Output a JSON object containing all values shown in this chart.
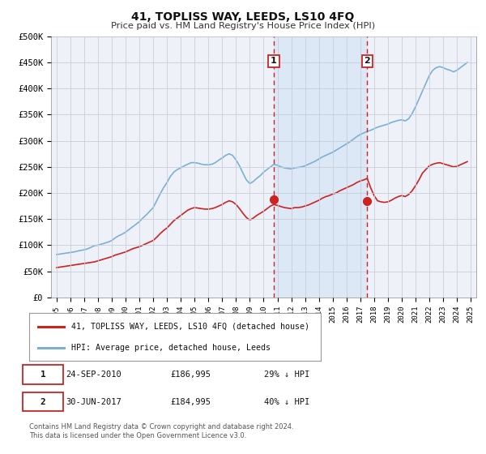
{
  "title": "41, TOPLISS WAY, LEEDS, LS10 4FQ",
  "subtitle": "Price paid vs. HM Land Registry's House Price Index (HPI)",
  "ylim": [
    0,
    500000
  ],
  "yticks": [
    0,
    50000,
    100000,
    150000,
    200000,
    250000,
    300000,
    350000,
    400000,
    450000,
    500000
  ],
  "ytick_labels": [
    "£0",
    "£50K",
    "£100K",
    "£150K",
    "£200K",
    "£250K",
    "£300K",
    "£350K",
    "£400K",
    "£450K",
    "£500K"
  ],
  "xlim_start": 1994.6,
  "xlim_end": 2025.4,
  "background_color": "#ffffff",
  "plot_bg_color": "#eef2f8",
  "grid_color": "#c8cdd8",
  "sale1_date": 2010.73,
  "sale1_price": 186995,
  "sale1_date_str": "24-SEP-2010",
  "sale1_hpi_diff": "29% ↓ HPI",
  "sale2_date": 2017.5,
  "sale2_price": 184995,
  "sale2_date_str": "30-JUN-2017",
  "sale2_hpi_diff": "40% ↓ HPI",
  "hpi_color": "#7ab0d4",
  "price_color": "#cc2222",
  "marker_color": "#cc2222",
  "shade_color": "#dce8f5",
  "legend_label_price": "41, TOPLISS WAY, LEEDS, LS10 4FQ (detached house)",
  "legend_label_hpi": "HPI: Average price, detached house, Leeds",
  "footnote_line1": "Contains HM Land Registry data © Crown copyright and database right 2024.",
  "footnote_line2": "This data is licensed under the Open Government Licence v3.0.",
  "hpi_data_x": [
    1995.0,
    1995.25,
    1995.5,
    1995.75,
    1996.0,
    1996.25,
    1996.5,
    1996.75,
    1997.0,
    1997.25,
    1997.5,
    1997.75,
    1998.0,
    1998.25,
    1998.5,
    1998.75,
    1999.0,
    1999.25,
    1999.5,
    1999.75,
    2000.0,
    2000.25,
    2000.5,
    2000.75,
    2001.0,
    2001.25,
    2001.5,
    2001.75,
    2002.0,
    2002.25,
    2002.5,
    2002.75,
    2003.0,
    2003.25,
    2003.5,
    2003.75,
    2004.0,
    2004.25,
    2004.5,
    2004.75,
    2005.0,
    2005.25,
    2005.5,
    2005.75,
    2006.0,
    2006.25,
    2006.5,
    2006.75,
    2007.0,
    2007.25,
    2007.5,
    2007.75,
    2008.0,
    2008.25,
    2008.5,
    2008.75,
    2009.0,
    2009.25,
    2009.5,
    2009.75,
    2010.0,
    2010.25,
    2010.5,
    2010.75,
    2011.0,
    2011.25,
    2011.5,
    2011.75,
    2012.0,
    2012.25,
    2012.5,
    2012.75,
    2013.0,
    2013.25,
    2013.5,
    2013.75,
    2014.0,
    2014.25,
    2014.5,
    2014.75,
    2015.0,
    2015.25,
    2015.5,
    2015.75,
    2016.0,
    2016.25,
    2016.5,
    2016.75,
    2017.0,
    2017.25,
    2017.5,
    2017.75,
    2018.0,
    2018.25,
    2018.5,
    2018.75,
    2019.0,
    2019.25,
    2019.5,
    2019.75,
    2020.0,
    2020.25,
    2020.5,
    2020.75,
    2021.0,
    2021.25,
    2021.5,
    2021.75,
    2022.0,
    2022.25,
    2022.5,
    2022.75,
    2023.0,
    2023.25,
    2023.5,
    2023.75,
    2024.0,
    2024.25,
    2024.5,
    2024.75
  ],
  "hpi_data_y": [
    82000,
    83000,
    84000,
    85000,
    86000,
    87000,
    88500,
    90000,
    91000,
    93000,
    96000,
    99000,
    100000,
    102000,
    104000,
    106000,
    109000,
    114000,
    118000,
    121000,
    125000,
    130000,
    135000,
    140000,
    145000,
    152000,
    158000,
    165000,
    172000,
    185000,
    198000,
    210000,
    220000,
    232000,
    240000,
    245000,
    248000,
    252000,
    255000,
    258000,
    258000,
    257000,
    255000,
    254000,
    254000,
    255000,
    258000,
    263000,
    267000,
    272000,
    275000,
    272000,
    263000,
    252000,
    238000,
    225000,
    218000,
    222000,
    228000,
    233000,
    240000,
    245000,
    250000,
    255000,
    253000,
    250000,
    248000,
    247000,
    246000,
    248000,
    249000,
    250000,
    252000,
    255000,
    258000,
    261000,
    265000,
    269000,
    272000,
    275000,
    278000,
    282000,
    286000,
    290000,
    294000,
    298000,
    303000,
    308000,
    312000,
    315000,
    318000,
    320000,
    323000,
    326000,
    328000,
    330000,
    332000,
    335000,
    337000,
    339000,
    340000,
    338000,
    342000,
    352000,
    365000,
    380000,
    395000,
    410000,
    425000,
    435000,
    440000,
    442000,
    440000,
    437000,
    435000,
    432000,
    435000,
    440000,
    445000,
    450000
  ],
  "price_data_x": [
    1995.0,
    1995.25,
    1995.5,
    1995.75,
    1996.0,
    1996.25,
    1996.5,
    1996.75,
    1997.0,
    1997.25,
    1997.5,
    1997.75,
    1998.0,
    1998.25,
    1998.5,
    1998.75,
    1999.0,
    1999.25,
    1999.5,
    1999.75,
    2000.0,
    2000.25,
    2000.5,
    2000.75,
    2001.0,
    2001.25,
    2001.5,
    2001.75,
    2002.0,
    2002.25,
    2002.5,
    2002.75,
    2003.0,
    2003.25,
    2003.5,
    2003.75,
    2004.0,
    2004.25,
    2004.5,
    2004.75,
    2005.0,
    2005.25,
    2005.5,
    2005.75,
    2006.0,
    2006.25,
    2006.5,
    2006.75,
    2007.0,
    2007.25,
    2007.5,
    2007.75,
    2008.0,
    2008.25,
    2008.5,
    2008.75,
    2009.0,
    2009.25,
    2009.5,
    2009.75,
    2010.0,
    2010.25,
    2010.5,
    2010.75,
    2011.0,
    2011.25,
    2011.5,
    2011.75,
    2012.0,
    2012.25,
    2012.5,
    2012.75,
    2013.0,
    2013.25,
    2013.5,
    2013.75,
    2014.0,
    2014.25,
    2014.5,
    2014.75,
    2015.0,
    2015.25,
    2015.5,
    2015.75,
    2016.0,
    2016.25,
    2016.5,
    2016.75,
    2017.0,
    2017.25,
    2017.5,
    2017.75,
    2018.0,
    2018.25,
    2018.5,
    2018.75,
    2019.0,
    2019.25,
    2019.5,
    2019.75,
    2020.0,
    2020.25,
    2020.5,
    2020.75,
    2021.0,
    2021.25,
    2021.5,
    2021.75,
    2022.0,
    2022.25,
    2022.5,
    2022.75,
    2023.0,
    2023.25,
    2023.5,
    2023.75,
    2024.0,
    2024.25,
    2024.5,
    2024.75
  ],
  "price_data_y": [
    57000,
    58000,
    59000,
    60000,
    61000,
    62000,
    63000,
    64000,
    65000,
    66000,
    67000,
    68000,
    70000,
    72000,
    74000,
    76000,
    78000,
    81000,
    83000,
    85000,
    87000,
    90000,
    93000,
    95000,
    97000,
    100000,
    103000,
    106000,
    109000,
    115000,
    122000,
    128000,
    133000,
    140000,
    147000,
    152000,
    157000,
    162000,
    167000,
    170000,
    172000,
    171000,
    170000,
    169000,
    169000,
    170000,
    172000,
    175000,
    178000,
    182000,
    185000,
    183000,
    178000,
    170000,
    161000,
    153000,
    148000,
    152000,
    157000,
    161000,
    165000,
    170000,
    175000,
    178000,
    176000,
    174000,
    172000,
    171000,
    170000,
    172000,
    172000,
    173000,
    175000,
    177000,
    180000,
    183000,
    186000,
    190000,
    193000,
    195000,
    198000,
    200000,
    204000,
    207000,
    210000,
    213000,
    216000,
    220000,
    223000,
    225000,
    228000,
    210000,
    195000,
    185000,
    183000,
    182000,
    183000,
    186000,
    190000,
    193000,
    195000,
    193000,
    197000,
    204000,
    214000,
    225000,
    238000,
    245000,
    252000,
    255000,
    257000,
    258000,
    256000,
    254000,
    252000,
    250000,
    251000,
    254000,
    257000,
    260000
  ]
}
